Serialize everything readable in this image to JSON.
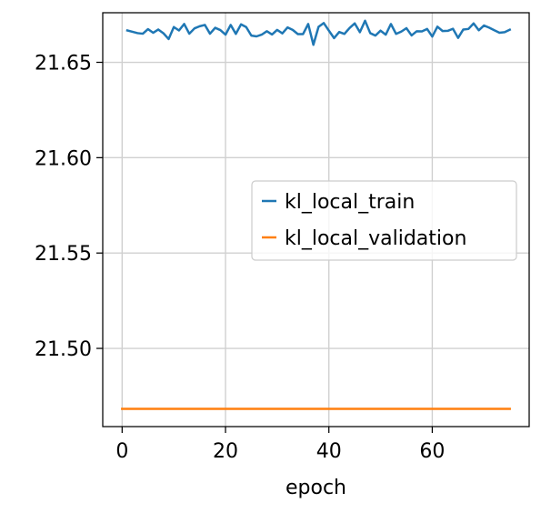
{
  "chart_data": {
    "type": "line",
    "xlabel": "epoch",
    "ylabel": "",
    "xlim": [
      -3.75,
      78.75
    ],
    "ylim": [
      21.459,
      21.676
    ],
    "x_ticks": [
      0,
      20,
      40,
      60
    ],
    "y_ticks": [
      21.5,
      21.55,
      21.6,
      21.65
    ],
    "x_tick_labels": [
      "0",
      "20",
      "40",
      "60"
    ],
    "y_tick_labels": [
      "21.50",
      "21.55",
      "21.60",
      "21.65"
    ],
    "grid": true,
    "legend": "center-right",
    "series": [
      {
        "name": "kl_local_train",
        "color": "#1f77b4",
        "x": [
          1,
          2,
          3,
          4,
          5,
          6,
          7,
          8,
          9,
          10,
          11,
          12,
          13,
          14,
          15,
          16,
          17,
          18,
          19,
          20,
          21,
          22,
          23,
          24,
          25,
          26,
          27,
          28,
          29,
          30,
          31,
          32,
          33,
          34,
          35,
          36,
          37,
          38,
          39,
          40,
          41,
          42,
          43,
          44,
          45,
          46,
          47,
          48,
          49,
          50,
          51,
          52,
          53,
          54,
          55,
          56,
          57,
          58,
          59,
          60,
          61,
          62,
          63,
          64,
          65,
          66,
          67,
          68,
          69,
          70,
          71,
          72,
          73,
          74,
          75
        ],
        "y": [
          21.6667,
          21.666,
          21.6653,
          21.665,
          21.6674,
          21.6655,
          21.6672,
          21.6652,
          21.6622,
          21.6685,
          21.6667,
          21.6701,
          21.665,
          21.6678,
          21.6689,
          21.6696,
          21.665,
          21.6681,
          21.6669,
          21.6645,
          21.6696,
          21.6649,
          21.6699,
          21.6685,
          21.664,
          21.6636,
          21.6645,
          21.6663,
          21.6646,
          21.667,
          21.6652,
          21.6683,
          21.667,
          21.6648,
          21.6648,
          21.6701,
          21.6592,
          21.6686,
          21.6706,
          21.6666,
          21.6627,
          21.6659,
          21.6649,
          21.668,
          21.6704,
          21.6658,
          21.6718,
          21.6653,
          21.664,
          21.6666,
          21.6645,
          21.6701,
          21.6649,
          21.6661,
          21.6679,
          21.6641,
          21.6663,
          21.6662,
          21.6675,
          21.6635,
          21.6687,
          21.6664,
          21.6665,
          21.6676,
          21.6628,
          21.6672,
          21.6675,
          21.6704,
          21.6668,
          21.6693,
          21.6682,
          21.6668,
          21.6655,
          21.6658,
          21.6671
        ]
      },
      {
        "name": "kl_local_validation",
        "color": "#ff7f0e",
        "x": [
          0,
          75
        ],
        "y": [
          21.4683,
          21.4683
        ]
      }
    ]
  }
}
